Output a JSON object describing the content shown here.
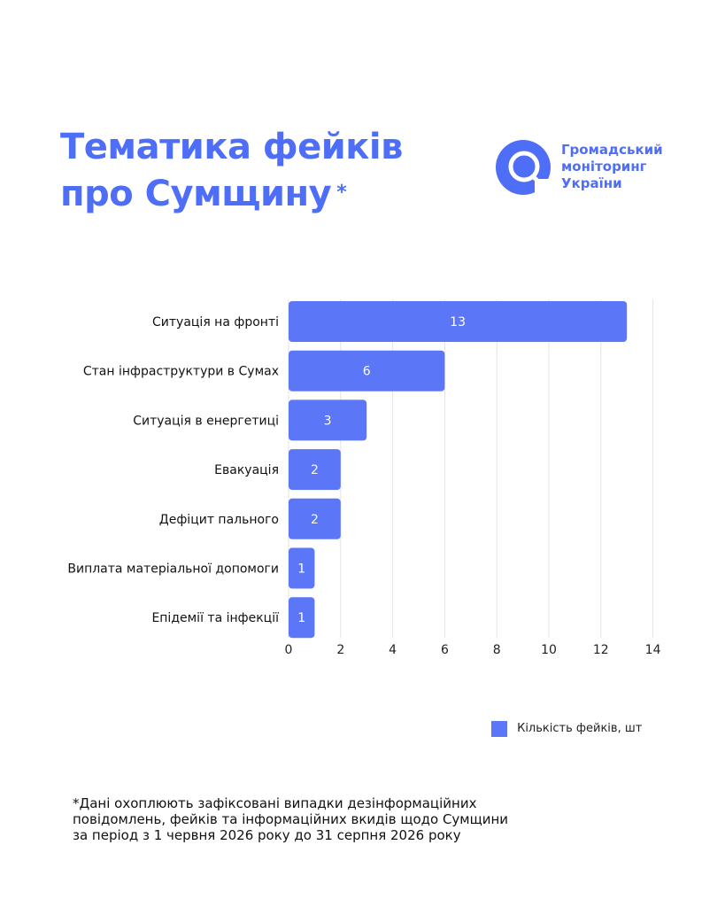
{
  "header": {
    "title_line1": "Тематика фейків",
    "title_line2": "про Сумщину",
    "asterisk": "*"
  },
  "logo": {
    "line1": "Громадський",
    "line2": "моніторинг",
    "line3": "України",
    "icon": "magnifier-logo-icon"
  },
  "colors": {
    "accent": "#4f6ef7",
    "bar": "#5b76f7",
    "grid": "#e3e3e3"
  },
  "chart_data": {
    "type": "bar",
    "orientation": "horizontal",
    "categories": [
      "Ситуація на фронті",
      "Стан інфраструктури в Сумах",
      "Ситуація в енергетиці",
      "Евакуація",
      "Дефіцит пального",
      "Виплата матеріальної допомоги",
      "Епідемії та інфекції"
    ],
    "series": [
      {
        "name": "Кількість фейків, шт",
        "values": [
          13,
          6,
          3,
          2,
          2,
          1,
          1
        ]
      }
    ],
    "data_labels": [
      "13",
      "6",
      "3",
      "2",
      "2",
      "1",
      "1"
    ],
    "xlim": [
      0,
      14
    ],
    "xticks": [
      "0",
      "2",
      "4",
      "6",
      "8",
      "10",
      "12",
      "14"
    ],
    "grid": true,
    "legend_position": "bottom-right"
  },
  "legend": {
    "label": "Кількість фейків, шт"
  },
  "footnote": {
    "line1": "*Дані охоплюють зафіксовані випадки дезінформаційних",
    "line2": "повідомлень, фейків та інформаційних вкидів щодо Сумщини",
    "line3": "за період з 1 червня 2026 року до 31 серпня 2026 року"
  }
}
